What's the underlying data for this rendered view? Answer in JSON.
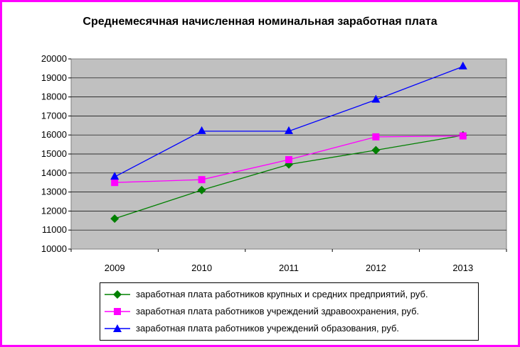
{
  "chart_data": {
    "type": "line",
    "title": "Среднемесячная начисленная номинальная заработная плата",
    "ylabel": "",
    "xlabel": "",
    "categories": [
      "2009",
      "2010",
      "2011",
      "2012",
      "2013"
    ],
    "ylim": [
      10000,
      20000
    ],
    "yticks": [
      "10000",
      "11000",
      "12000",
      "13000",
      "14000",
      "15000",
      "16000",
      "17000",
      "18000",
      "19000",
      "20000"
    ],
    "grid": true,
    "legend_position": "bottom",
    "series": [
      {
        "name": "заработная плата работников крупных и средних предприятий, руб.",
        "values": [
          11600,
          13100,
          14450,
          15200,
          15980
        ],
        "color": "#008000",
        "marker": "diamond"
      },
      {
        "name": " заработная плата работников учреждений здравоохранения, руб.",
        "values": [
          13500,
          13650,
          14700,
          15900,
          15950
        ],
        "color": "#ff00ff",
        "marker": "square"
      },
      {
        "name": "заработная плата работников учреждений образования, руб.",
        "values": [
          13800,
          16200,
          16200,
          17850,
          19600
        ],
        "color": "#0000ff",
        "marker": "triangle"
      }
    ]
  },
  "colors": {
    "frame": "#ff00ff",
    "plot_bg": "#c0c0c0"
  }
}
